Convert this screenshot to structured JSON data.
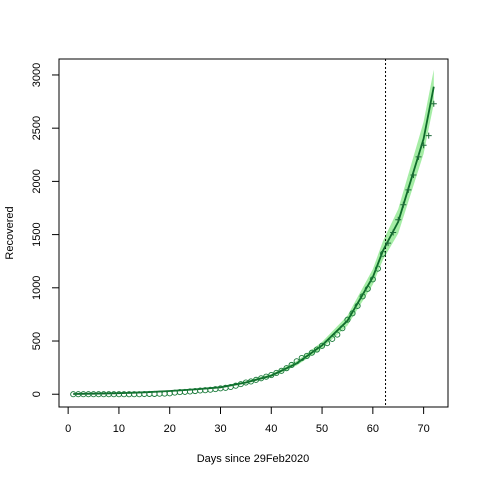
{
  "chart_data": {
    "type": "scatter",
    "xlabel": "Days since 29Feb2020",
    "ylabel": "Recovered",
    "xlim": [
      -1.8,
      74.8
    ],
    "ylim": [
      -120,
      3150
    ],
    "x_ticks": [
      0,
      10,
      20,
      30,
      40,
      50,
      60,
      70
    ],
    "x_tick_labels": [
      "0",
      "10",
      "20",
      "30",
      "40",
      "50",
      "60",
      "70"
    ],
    "y_ticks": [
      0,
      500,
      1000,
      1500,
      2000,
      2500,
      3000
    ],
    "y_tick_labels": [
      "0",
      "500",
      "1000",
      "1500",
      "2000",
      "2500",
      "3000"
    ],
    "vline_x": 62.5,
    "colors": {
      "observed": "#1a7a3a",
      "fit_line": "#0e6b2a",
      "band": "#8ee88e",
      "forecast": "#1f6b3a",
      "vline": "#000000"
    },
    "series": [
      {
        "marker": "open-circle",
        "x": [
          1,
          2,
          3,
          4,
          5,
          6,
          7,
          8,
          9,
          10,
          11,
          12,
          13,
          14,
          15,
          16,
          17,
          18,
          19,
          20,
          21,
          22,
          23,
          24,
          25,
          26,
          27,
          28,
          29,
          30,
          31,
          32,
          33,
          34,
          35,
          36,
          37,
          38,
          39,
          40,
          41,
          42,
          43,
          44,
          45,
          46,
          47,
          48,
          49,
          50,
          51,
          52,
          53,
          54,
          55,
          56,
          57,
          58,
          59,
          60,
          61,
          62
        ],
        "y": [
          0,
          0,
          0,
          0,
          0,
          0,
          0,
          0,
          0,
          0,
          0,
          0,
          0,
          0,
          2,
          3,
          3,
          5,
          6,
          8,
          15,
          20,
          22,
          26,
          30,
          35,
          38,
          42,
          48,
          55,
          60,
          68,
          80,
          95,
          110,
          120,
          135,
          150,
          165,
          180,
          200,
          220,
          245,
          275,
          310,
          340,
          360,
          390,
          420,
          455,
          480,
          520,
          560,
          620,
          700,
          760,
          830,
          920,
          990,
          1080,
          1180,
          1320
        ]
      },
      {
        "marker": "plus",
        "x": [
          63,
          64,
          65,
          66,
          67,
          68,
          69,
          70,
          71,
          72
        ],
        "y": [
          1420,
          1520,
          1640,
          1780,
          1920,
          2060,
          2230,
          2340,
          2430,
          2730
        ]
      },
      {
        "marker": "line",
        "x": [
          1,
          5,
          10,
          15,
          20,
          25,
          30,
          35,
          40,
          45,
          50,
          55,
          60,
          62,
          65,
          70,
          72
        ],
        "y": [
          2,
          5,
          10,
          18,
          30,
          45,
          65,
          110,
          175,
          290,
          460,
          690,
          1100,
          1350,
          1620,
          2400,
          2890
        ]
      }
    ],
    "band": {
      "x": [
        1,
        5,
        10,
        15,
        20,
        25,
        30,
        35,
        40,
        45,
        50,
        55,
        60,
        62,
        65,
        70,
        72
      ],
      "lower": [
        0,
        3,
        7,
        14,
        25,
        39,
        57,
        100,
        162,
        270,
        430,
        645,
        1030,
        1265,
        1510,
        2260,
        2730
      ],
      "upper": [
        4,
        8,
        13,
        22,
        35,
        52,
        75,
        122,
        190,
        312,
        492,
        738,
        1175,
        1440,
        1740,
        2560,
        3050
      ]
    }
  }
}
